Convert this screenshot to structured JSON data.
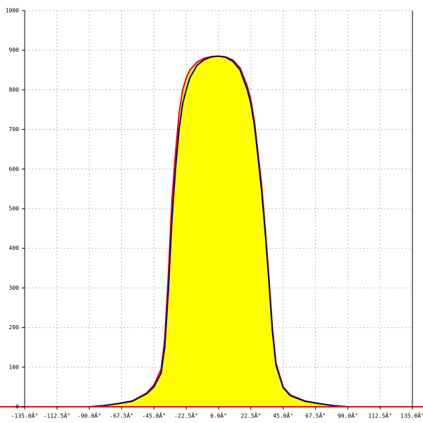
{
  "chart_data": {
    "type": "area",
    "x": [
      -90,
      -80,
      -70,
      -60,
      -50,
      -45,
      -40,
      -37.5,
      -35,
      -32.5,
      -30,
      -27.5,
      -25,
      -22.5,
      -20,
      -15,
      -10,
      -5,
      0,
      5,
      10,
      15,
      20,
      22.5,
      25,
      27.5,
      30,
      32.5,
      35,
      37.5,
      40,
      45,
      50,
      60,
      70,
      80,
      90
    ],
    "series": [
      {
        "color": "#ff0000",
        "fill": "#ffff00",
        "values": [
          0,
          3,
          8,
          15,
          35,
          55,
          95,
          170,
          330,
          520,
          640,
          740,
          800,
          830,
          850,
          870,
          880,
          884,
          885,
          883,
          875,
          855,
          810,
          775,
          720,
          640,
          560,
          450,
          330,
          200,
          110,
          50,
          30,
          15,
          8,
          3,
          0
        ]
      },
      {
        "color": "#000080",
        "values": [
          0,
          3,
          8,
          14,
          33,
          50,
          85,
          150,
          290,
          470,
          600,
          700,
          765,
          800,
          830,
          862,
          876,
          883,
          885,
          882,
          872,
          850,
          800,
          765,
          710,
          630,
          545,
          440,
          320,
          190,
          105,
          48,
          28,
          14,
          8,
          3,
          0
        ]
      }
    ],
    "xlim": [
      -135,
      135
    ],
    "xticks": [
      {
        "value": -135,
        "label": "-135.0Â°"
      },
      {
        "value": -112.5,
        "label": "-112.5Â°"
      },
      {
        "value": -90,
        "label": "-90.0Â°"
      },
      {
        "value": -67.5,
        "label": "-67.5Â°"
      },
      {
        "value": -45,
        "label": "-45.0Â°"
      },
      {
        "value": -22.5,
        "label": "-22.5Â°"
      },
      {
        "value": 0,
        "label": "0.0Â°"
      },
      {
        "value": 22.5,
        "label": "22.5Â°"
      },
      {
        "value": 45,
        "label": "45.0Â°"
      },
      {
        "value": 67.5,
        "label": "67.5Â°"
      },
      {
        "value": 90,
        "label": "90.0Â°"
      },
      {
        "value": 112.5,
        "label": "112.5Â°"
      },
      {
        "value": 135,
        "label": "135.0Â°"
      }
    ],
    "ylim": [
      0,
      1000
    ],
    "yticks": [
      0,
      100,
      200,
      300,
      400,
      500,
      600,
      700,
      800,
      900,
      1000
    ],
    "grid": true
  }
}
